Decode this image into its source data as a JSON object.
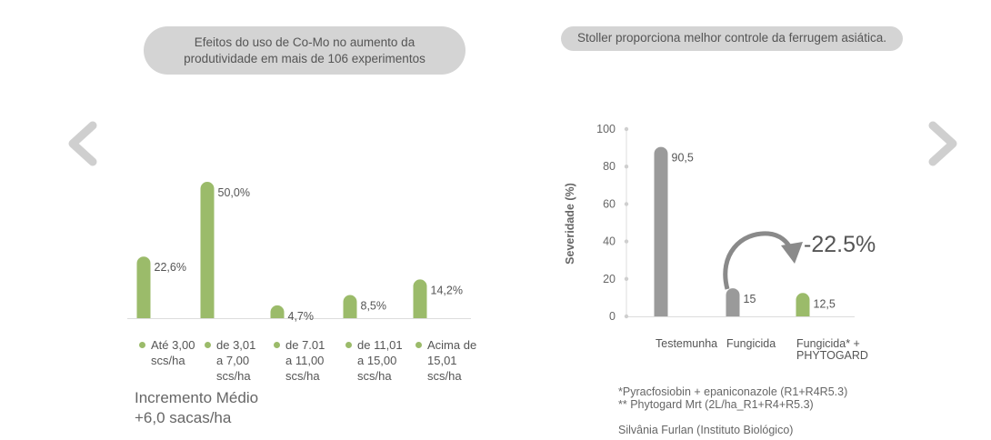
{
  "left_panel": {
    "title_line1": "Efeitos do uso de Co-Mo no aumento da",
    "title_line2": "produtividade em mais de 106 experimentos",
    "increment_line1": "Incremento Médio",
    "increment_line2": "+6,0 sacas/ha"
  },
  "right_panel": {
    "title": "Stoller proporciona melhor controle da ferrugem asiática.",
    "reduction_label": "-22.5%",
    "notes": [
      "*Pyracfosiobin + epaniconazole (R1+R4R5.3)",
      "** Phytogard Mrt (2L/ha_R1+R4+R5.3)",
      "",
      "Silvânia Furlan (Instituto Biológico)"
    ]
  },
  "colors": {
    "green": "#9bbb6a",
    "gray_bar": "#9a9a9a",
    "pill": "#d4d4d4",
    "arrow": "#8a8a8a"
  },
  "chart_data": [
    {
      "type": "bar",
      "categories": [
        [
          "Até 3,00",
          "scs/ha"
        ],
        [
          "de 3,01",
          "a 7,00",
          "scs/ha"
        ],
        [
          "de 7.01",
          "a 11,00",
          "scs/ha"
        ],
        [
          "de 11,01",
          "a 15,00",
          "scs/ha"
        ],
        [
          "Acima de",
          "15,01",
          "scs/ha"
        ]
      ],
      "values": [
        22.6,
        50.0,
        4.7,
        8.5,
        14.2
      ],
      "data_labels": [
        "22,6%",
        "50,0%",
        "4,7%",
        "8,5%",
        "14,2%"
      ],
      "title": "",
      "xlabel": "",
      "ylabel": "",
      "ylim": [
        0,
        50
      ],
      "grid": false,
      "legend": "bottom"
    },
    {
      "type": "bar",
      "categories": [
        [
          "Testemunha"
        ],
        [
          "Fungicida"
        ],
        [
          "Fungicida* +",
          "PHYTOGARD"
        ]
      ],
      "values": [
        90.5,
        15,
        12.5
      ],
      "data_labels": [
        "90,5",
        "15",
        "12,5"
      ],
      "title": "",
      "xlabel": "",
      "ylabel": "Severidade (%)",
      "ylim": [
        0,
        100
      ],
      "yticks": [
        0,
        20,
        40,
        60,
        80,
        100
      ],
      "grid": false
    }
  ]
}
